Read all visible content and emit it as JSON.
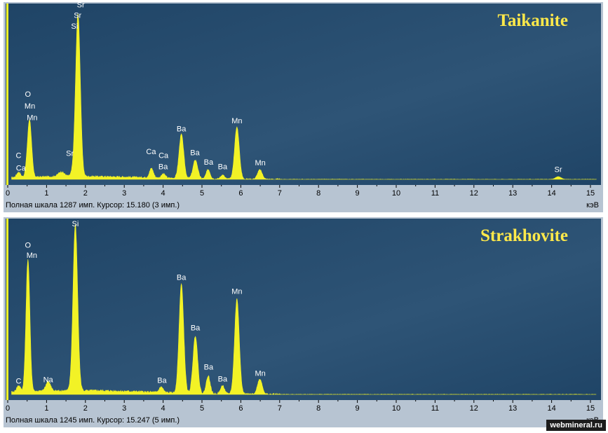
{
  "watermark": "webmineral.ru",
  "colors": {
    "plot_bg": "#1f4466",
    "plot_bg_light": "#2e5476",
    "spectrum": "#f2f226",
    "peak_label": "#ffffff",
    "title": "#ffe94a",
    "frame": "#b7c4d2"
  },
  "x_axis": {
    "ticks": [
      "0",
      "1",
      "2",
      "3",
      "4",
      "5",
      "6",
      "7",
      "8",
      "9",
      "10",
      "11",
      "12",
      "13",
      "14",
      "15"
    ],
    "unit": "кэВ"
  },
  "chart_data": [
    {
      "type": "line",
      "title": "Taikanite",
      "xlim": [
        0,
        15.2
      ],
      "ylim": [
        0,
        1287
      ],
      "status": "Полная шкала 1287 имп. Курсор: 15.180  (3 имп.)",
      "series": [
        {
          "peaks": [
            {
              "x": 0.28,
              "y": 40,
              "w": 0.05
            },
            {
              "x": 0.52,
              "y": 110,
              "w": 0.05
            },
            {
              "x": 0.57,
              "y": 360,
              "w": 0.05
            },
            {
              "x": 1.38,
              "y": 35,
              "w": 0.08
            },
            {
              "x": 1.74,
              "y": 70,
              "w": 0.07
            },
            {
              "x": 1.81,
              "y": 1180,
              "w": 0.06
            },
            {
              "x": 3.7,
              "y": 70,
              "w": 0.05
            },
            {
              "x": 4.01,
              "y": 30,
              "w": 0.05
            },
            {
              "x": 4.47,
              "y": 330,
              "w": 0.06
            },
            {
              "x": 4.83,
              "y": 140,
              "w": 0.06
            },
            {
              "x": 5.16,
              "y": 70,
              "w": 0.05
            },
            {
              "x": 5.53,
              "y": 30,
              "w": 0.05
            },
            {
              "x": 5.9,
              "y": 390,
              "w": 0.06
            },
            {
              "x": 6.49,
              "y": 70,
              "w": 0.06
            },
            {
              "x": 14.17,
              "y": 20,
              "w": 0.07
            }
          ],
          "background": 22,
          "noise": 12,
          "seed": 17
        }
      ],
      "labels": [
        {
          "text": "C",
          "x": 0.28,
          "y": 160
        },
        {
          "text": "Ca",
          "x": 0.34,
          "y": 65
        },
        {
          "text": "O",
          "x": 0.52,
          "y": 620
        },
        {
          "text": "Mn",
          "x": 0.57,
          "y": 530
        },
        {
          "text": "Mn",
          "x": 0.63,
          "y": 445
        },
        {
          "text": "Sr",
          "x": 1.6,
          "y": 175
        },
        {
          "text": "Sr",
          "x": 1.88,
          "y": 1290
        },
        {
          "text": "Sr",
          "x": 1.8,
          "y": 1210
        },
        {
          "text": "Si",
          "x": 1.72,
          "y": 1130
        },
        {
          "text": "Ca",
          "x": 3.69,
          "y": 190
        },
        {
          "text": "Ca",
          "x": 4.01,
          "y": 160
        },
        {
          "text": "Ba",
          "x": 4.0,
          "y": 75
        },
        {
          "text": "Ba",
          "x": 4.47,
          "y": 360
        },
        {
          "text": "Ba",
          "x": 4.82,
          "y": 180
        },
        {
          "text": "Ba",
          "x": 5.17,
          "y": 110
        },
        {
          "text": "Ba",
          "x": 5.53,
          "y": 75
        },
        {
          "text": "Mn",
          "x": 5.9,
          "y": 420
        },
        {
          "text": "Mn",
          "x": 6.5,
          "y": 105
        },
        {
          "text": "Sr",
          "x": 14.17,
          "y": 55
        }
      ]
    },
    {
      "type": "line",
      "title": "Strakhovite",
      "xlim": [
        0,
        15.2
      ],
      "ylim": [
        0,
        1245
      ],
      "status": "Полная шкала 1245 имп. Курсор: 15.247  (5 имп.)",
      "series": [
        {
          "peaks": [
            {
              "x": 0.28,
              "y": 45,
              "w": 0.05
            },
            {
              "x": 0.52,
              "y": 960,
              "w": 0.05
            },
            {
              "x": 1.04,
              "y": 70,
              "w": 0.06
            },
            {
              "x": 1.74,
              "y": 1200,
              "w": 0.06
            },
            {
              "x": 3.95,
              "y": 40,
              "w": 0.05
            },
            {
              "x": 4.47,
              "y": 790,
              "w": 0.06
            },
            {
              "x": 4.83,
              "y": 420,
              "w": 0.06
            },
            {
              "x": 5.16,
              "y": 130,
              "w": 0.05
            },
            {
              "x": 5.53,
              "y": 60,
              "w": 0.05
            },
            {
              "x": 5.9,
              "y": 690,
              "w": 0.06
            },
            {
              "x": 6.49,
              "y": 110,
              "w": 0.06
            }
          ],
          "background": 28,
          "noise": 15,
          "seed": 41
        }
      ],
      "labels": [
        {
          "text": "C",
          "x": 0.28,
          "y": 80
        },
        {
          "text": "O",
          "x": 0.52,
          "y": 1065
        },
        {
          "text": "Mn",
          "x": 0.62,
          "y": 990
        },
        {
          "text": "Na",
          "x": 1.04,
          "y": 90
        },
        {
          "text": "Si",
          "x": 1.74,
          "y": 1220
        },
        {
          "text": "Ba",
          "x": 3.97,
          "y": 85
        },
        {
          "text": "Ba",
          "x": 4.47,
          "y": 830
        },
        {
          "text": "Ba",
          "x": 4.83,
          "y": 465
        },
        {
          "text": "Ba",
          "x": 5.17,
          "y": 180
        },
        {
          "text": "Ba",
          "x": 5.53,
          "y": 95
        },
        {
          "text": "Mn",
          "x": 5.9,
          "y": 730
        },
        {
          "text": "Mn",
          "x": 6.5,
          "y": 135
        }
      ]
    }
  ]
}
